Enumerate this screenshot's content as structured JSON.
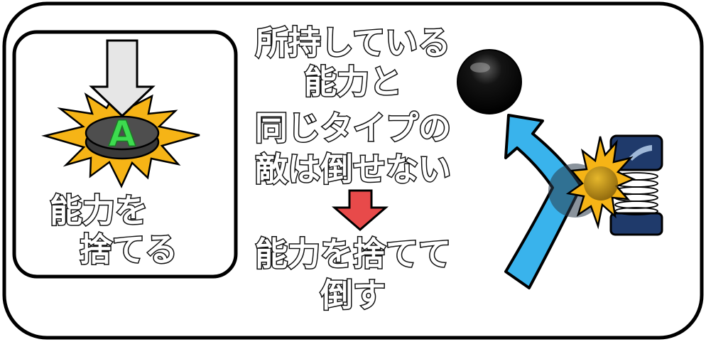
{
  "left_panel": {
    "button_letter": "A",
    "caption_line1": "能力を",
    "caption_line2": "捨てる"
  },
  "center": {
    "condition_lines": [
      "所持している",
      "能力と",
      "同じタイプの",
      "敵は倒せない"
    ],
    "result_lines": [
      "能力を捨てて",
      "倒す"
    ]
  },
  "colors": {
    "arrow_gray": "#e6e6e6",
    "arrow_red": "#e84a4a",
    "arrow_blue": "#39b3ec",
    "burst_yellow": "#f6b416",
    "button_dark": "#4a4a4a",
    "enemy_navy": "#1f3a6b"
  },
  "icons": {
    "press_arrow": "down-arrow-icon",
    "burst": "impact-burst-icon",
    "ball": "black-ball-icon",
    "enemy": "spring-enemy-icon"
  }
}
